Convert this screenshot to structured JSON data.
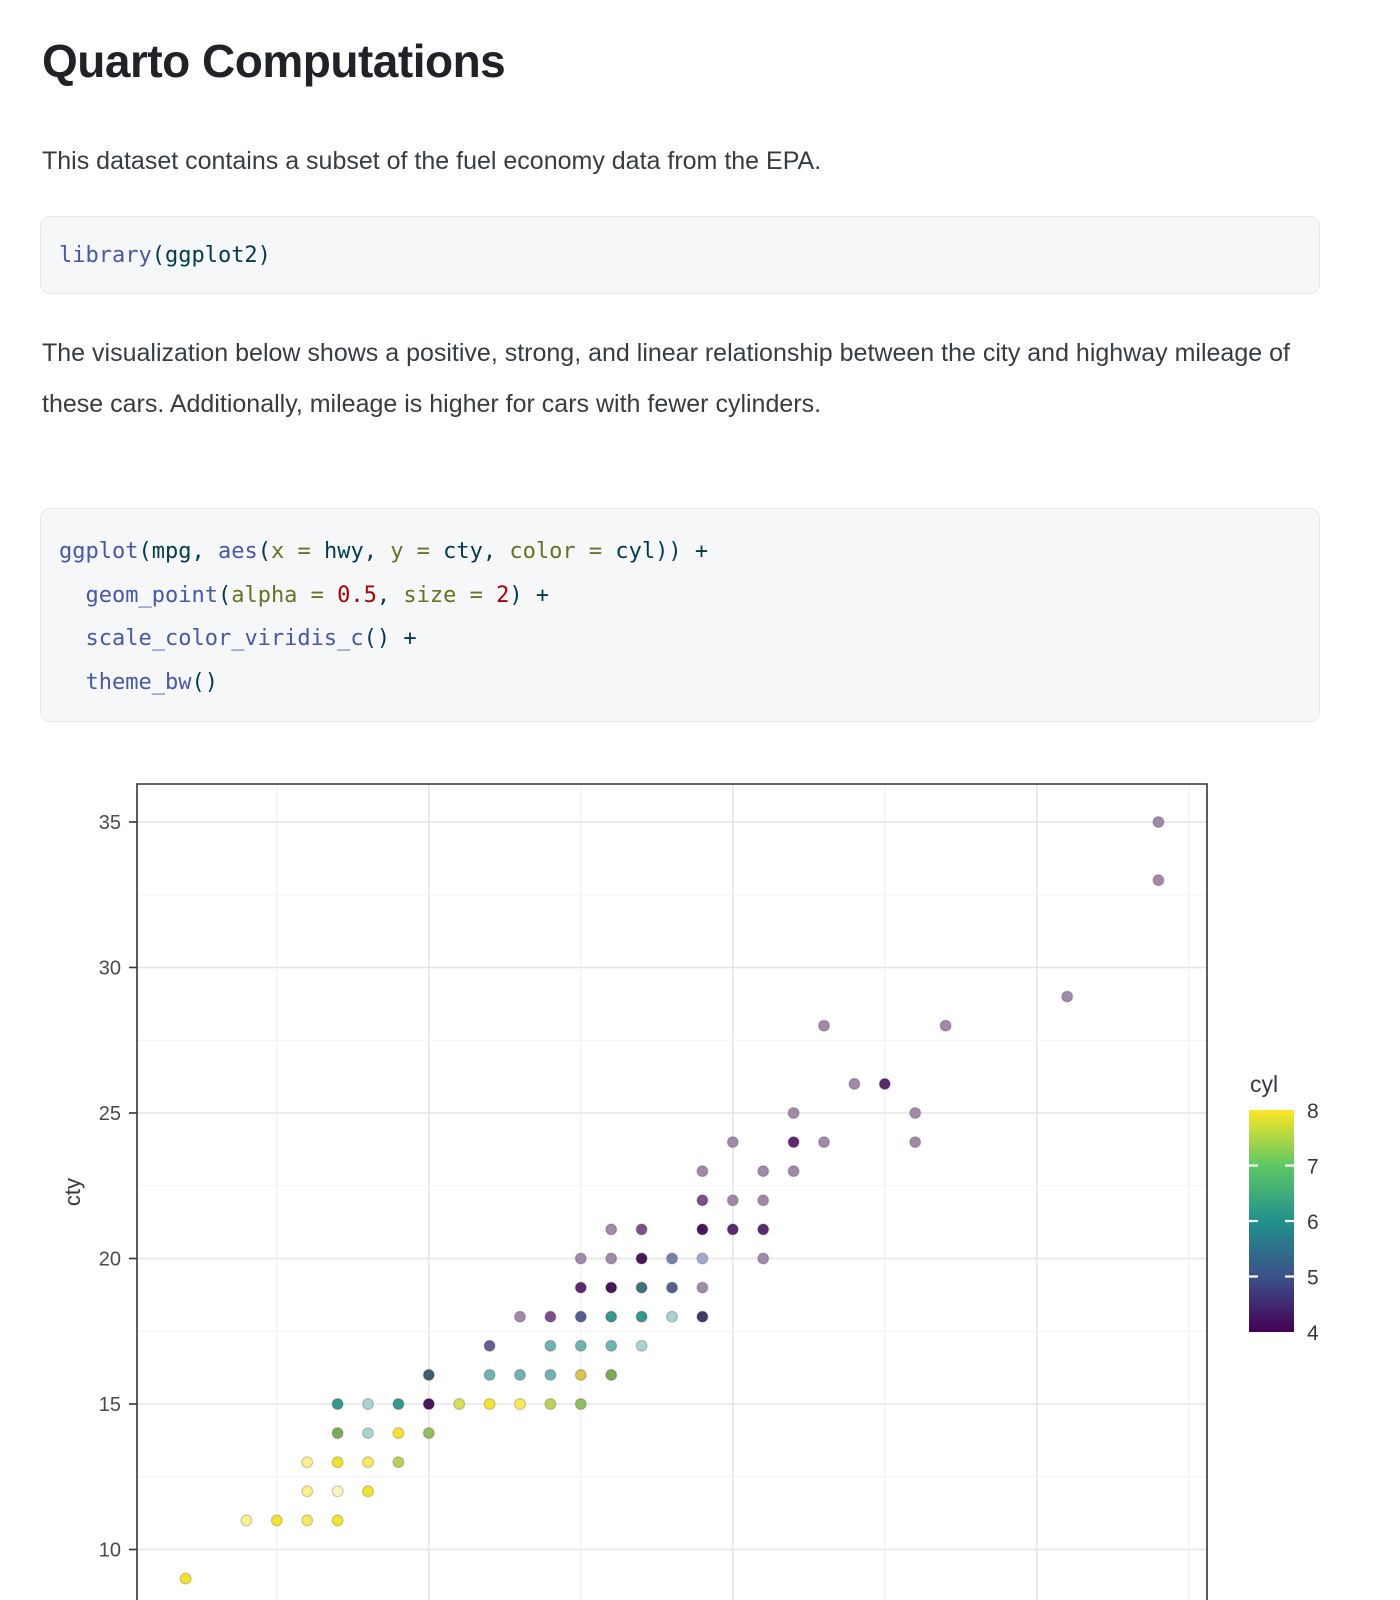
{
  "page": {
    "title": "Quarto Computations",
    "paragraph1": "This dataset contains a subset of the fuel economy data from the EPA.",
    "paragraph2": "The visualization below shows a positive, strong, and linear relationship between the city and highway mileage of these cars. Additionally, mileage is higher for cars with fewer cylinders."
  },
  "code_blocks": [
    {
      "name": "library-code",
      "lines": [
        [
          {
            "t": "library",
            "c": "fu"
          },
          {
            "t": "(ggplot2)",
            "c": "pl"
          }
        ]
      ]
    },
    {
      "name": "ggplot-code",
      "lines": [
        [
          {
            "t": "ggplot",
            "c": "fu"
          },
          {
            "t": "(mpg, ",
            "c": "pl"
          },
          {
            "t": "aes",
            "c": "fu"
          },
          {
            "t": "(",
            "c": "pl"
          },
          {
            "t": "x = ",
            "c": "at"
          },
          {
            "t": "hwy, ",
            "c": "pl"
          },
          {
            "t": "y = ",
            "c": "at"
          },
          {
            "t": "cty, ",
            "c": "pl"
          },
          {
            "t": "color = ",
            "c": "at"
          },
          {
            "t": "cyl)) +",
            "c": "pl"
          }
        ],
        [
          {
            "t": "  ",
            "c": "pl"
          },
          {
            "t": "geom_point",
            "c": "fu"
          },
          {
            "t": "(",
            "c": "pl"
          },
          {
            "t": "alpha = ",
            "c": "at"
          },
          {
            "t": "0.5",
            "c": "dv"
          },
          {
            "t": ", ",
            "c": "pl"
          },
          {
            "t": "size = ",
            "c": "at"
          },
          {
            "t": "2",
            "c": "dv"
          },
          {
            "t": ") +",
            "c": "pl"
          }
        ],
        [
          {
            "t": "  ",
            "c": "pl"
          },
          {
            "t": "scale_color_viridis_c",
            "c": "fu"
          },
          {
            "t": "() +",
            "c": "pl"
          }
        ],
        [
          {
            "t": "  ",
            "c": "pl"
          },
          {
            "t": "theme_bw",
            "c": "fu"
          },
          {
            "t": "()",
            "c": "pl"
          }
        ]
      ]
    }
  ],
  "chart_data": {
    "type": "scatter",
    "x_var": "hwy",
    "y_var": "cty",
    "color_var": "cyl",
    "ylabel": "cty",
    "x_gridlines": [
      15,
      20,
      25,
      30,
      35,
      40,
      45
    ],
    "x_minor": [
      15,
      25,
      35,
      45
    ],
    "y_major": [
      10,
      15,
      20,
      25,
      30,
      35
    ],
    "y_minor": [
      12.5,
      17.5,
      22.5,
      27.5,
      32.5
    ],
    "xlim": [
      10.4,
      45.6
    ],
    "ylim_top_value": 36.3,
    "grid": "on",
    "legend": {
      "title": "cyl",
      "position": "right",
      "ticks": [
        8,
        7,
        6,
        5,
        4
      ],
      "notch_ticks": [
        7,
        6,
        5
      ],
      "gradient_bottom_to_top": [
        "#440154",
        "#3B528B",
        "#21918C",
        "#5DC863",
        "#FDE725"
      ]
    },
    "palette": {
      "y1": "#FCF6BC",
      "y2": "#FBF08D",
      "y3": "#F9EA5C",
      "y4": "#F5E32B",
      "yg1": "#D6DE54",
      "yg2": "#BDD157",
      "g2": "#90BF60",
      "g3": "#77AD56",
      "m1": "#D9C54C",
      "t1": "#A8D3CE",
      "t2": "#6FB5AF",
      "t3": "#35998F",
      "t4": "#3B7480",
      "t5": "#3B5F6D",
      "b1": "#9FAACB",
      "b2": "#7381AB",
      "b3": "#55618C",
      "b4": "#453B69",
      "i1": "#655E99",
      "p1": "#A289AA",
      "p2": "#7E4E8D",
      "p3": "#5D2A72",
      "p4": "#49165C"
    },
    "points": [
      [
        12,
        9,
        "y4"
      ],
      [
        14,
        11,
        "y2"
      ],
      [
        15,
        11,
        "y4"
      ],
      [
        16,
        11,
        "y3"
      ],
      [
        17,
        11,
        "y4"
      ],
      [
        16,
        12,
        "y2"
      ],
      [
        17,
        12,
        "y1"
      ],
      [
        18,
        12,
        "y4"
      ],
      [
        16,
        13,
        "y2"
      ],
      [
        17,
        13,
        "y4"
      ],
      [
        18,
        13,
        "y3"
      ],
      [
        19,
        13,
        "yg2"
      ],
      [
        17,
        14,
        "g3"
      ],
      [
        18,
        14,
        "t1"
      ],
      [
        19,
        14,
        "y4"
      ],
      [
        20,
        14,
        "g2"
      ],
      [
        17,
        15,
        "t3"
      ],
      [
        18,
        15,
        "t1"
      ],
      [
        19,
        15,
        "t3"
      ],
      [
        20,
        15,
        "p4"
      ],
      [
        21,
        15,
        "yg1"
      ],
      [
        22,
        15,
        "y4"
      ],
      [
        23,
        15,
        "y3"
      ],
      [
        24,
        15,
        "yg2"
      ],
      [
        25,
        15,
        "g2"
      ],
      [
        20,
        16,
        "t5"
      ],
      [
        22,
        16,
        "t2"
      ],
      [
        23,
        16,
        "t2"
      ],
      [
        24,
        16,
        "t2"
      ],
      [
        25,
        16,
        "m1"
      ],
      [
        26,
        16,
        "g3"
      ],
      [
        22,
        17,
        "i1"
      ],
      [
        24,
        17,
        "t2"
      ],
      [
        25,
        17,
        "t2"
      ],
      [
        26,
        17,
        "t2"
      ],
      [
        27,
        17,
        "t1"
      ],
      [
        23,
        18,
        "p1"
      ],
      [
        24,
        18,
        "p2"
      ],
      [
        25,
        18,
        "b3"
      ],
      [
        26,
        18,
        "t3"
      ],
      [
        27,
        18,
        "t3"
      ],
      [
        28,
        18,
        "t1"
      ],
      [
        29,
        18,
        "b4"
      ],
      [
        25,
        19,
        "p3"
      ],
      [
        26,
        19,
        "p4"
      ],
      [
        27,
        19,
        "t4"
      ],
      [
        28,
        19,
        "b3"
      ],
      [
        29,
        19,
        "p1"
      ],
      [
        25,
        20,
        "p1"
      ],
      [
        26,
        20,
        "p1"
      ],
      [
        27,
        20,
        "p4"
      ],
      [
        28,
        20,
        "b2"
      ],
      [
        29,
        20,
        "b1"
      ],
      [
        31,
        20,
        "p1"
      ],
      [
        26,
        21,
        "p1"
      ],
      [
        27,
        21,
        "p2"
      ],
      [
        29,
        21,
        "p4"
      ],
      [
        30,
        21,
        "p3"
      ],
      [
        31,
        21,
        "p3"
      ],
      [
        29,
        22,
        "p2"
      ],
      [
        30,
        22,
        "p1"
      ],
      [
        31,
        22,
        "p1"
      ],
      [
        29,
        23,
        "p1"
      ],
      [
        31,
        23,
        "p1"
      ],
      [
        32,
        23,
        "p1"
      ],
      [
        30,
        24,
        "p1"
      ],
      [
        32,
        24,
        "p3"
      ],
      [
        33,
        24,
        "p1"
      ],
      [
        36,
        24,
        "p1"
      ],
      [
        32,
        25,
        "p1"
      ],
      [
        36,
        25,
        "p1"
      ],
      [
        34,
        26,
        "p1"
      ],
      [
        35,
        26,
        "p3"
      ],
      [
        33,
        28,
        "p1"
      ],
      [
        37,
        28,
        "p1"
      ],
      [
        41,
        29,
        "p1"
      ],
      [
        44,
        33,
        "p1"
      ],
      [
        44,
        35,
        "p1"
      ]
    ]
  }
}
